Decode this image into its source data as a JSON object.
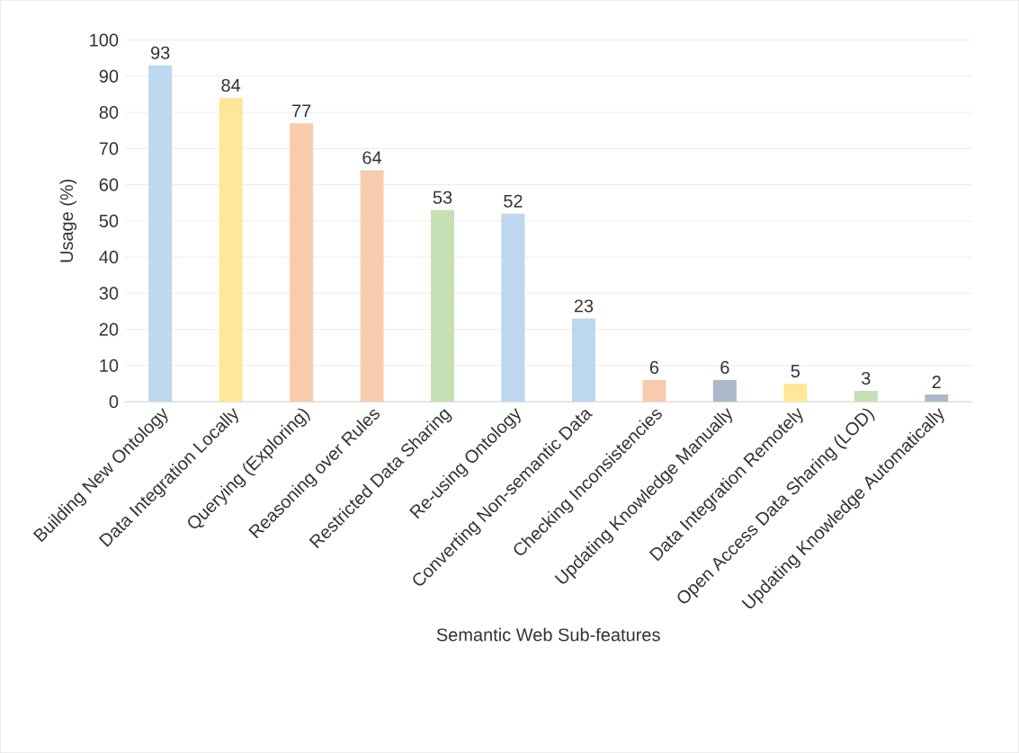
{
  "chart_data": {
    "type": "bar",
    "xlabel": "Semantic Web Sub-features",
    "ylabel": "Usage (%)",
    "categories": [
      "Building New Ontology",
      "Data Integration Locally",
      "Querying (Exploring)",
      "Reasoning over Rules",
      "Restricted Data Sharing",
      "Re-using Ontology",
      "Converting Non-semantic Data",
      "Checking Inconsistencies",
      "Updating Knowledge Manually",
      "Data Integration Remotely",
      "Open Access Data Sharing (LOD)",
      "Updating Knowledge Automatically"
    ],
    "values": [
      93,
      84,
      77,
      64,
      53,
      52,
      23,
      6,
      6,
      5,
      3,
      2
    ],
    "colors": [
      "#bdd7ee",
      "#ffe699",
      "#f8cbad",
      "#f8cbad",
      "#c5e0b4",
      "#bdd7ee",
      "#bdd7ee",
      "#f8cbad",
      "#adb9ca",
      "#ffe699",
      "#c5e0b4",
      "#adb9ca"
    ],
    "ylim": [
      0,
      100
    ],
    "yticks": [
      0,
      10,
      20,
      30,
      40,
      50,
      60,
      70,
      80,
      90,
      100
    ],
    "grid": "y",
    "data_labels": true
  }
}
